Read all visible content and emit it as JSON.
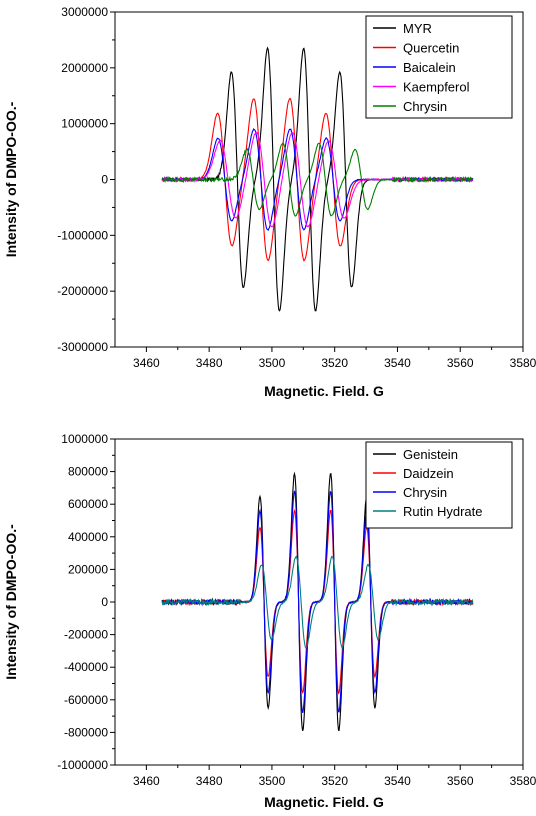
{
  "chart_data": [
    {
      "type": "line",
      "xlabel": "Magnetic. Field. G",
      "ylabel": "Intensity of DMPO-OO.-",
      "xlim": [
        3450,
        3580
      ],
      "ylim": [
        -3000000,
        3000000
      ],
      "xticks": [
        3460,
        3480,
        3500,
        3520,
        3540,
        3560,
        3580
      ],
      "yticks": [
        -3000000,
        -2000000,
        -1000000,
        0,
        1000000,
        2000000,
        3000000
      ],
      "legend_position": "top-right",
      "series": [
        {
          "name": "MYR",
          "color": "#000000",
          "amp": 2350000,
          "onset": 3484,
          "width": 1.9
        },
        {
          "name": "Quercetin",
          "color": "#ff0000",
          "amp": 1450000,
          "onset": 3474,
          "width": 2.3
        },
        {
          "name": "Baicalein",
          "color": "#0000ff",
          "amp": 900000,
          "onset": 3474,
          "width": 2.2
        },
        {
          "name": "Kaempferol",
          "color": "#ff00ff",
          "amp": 850000,
          "onset": 3478,
          "width": 2.5
        },
        {
          "name": "Chrysin",
          "color": "#008000",
          "amp": 650000,
          "onset": 3493,
          "width": 2.0
        }
      ]
    },
    {
      "type": "line",
      "xlabel": "Magnetic. Field. G",
      "ylabel": "Intensity of DMPO-OO.-",
      "xlim": [
        3450,
        3580
      ],
      "ylim": [
        -1000000,
        1000000
      ],
      "xticks": [
        3460,
        3480,
        3500,
        3520,
        3540,
        3560,
        3580
      ],
      "yticks": [
        -1000000,
        -800000,
        -600000,
        -400000,
        -200000,
        0,
        200000,
        400000,
        600000,
        800000,
        1000000
      ],
      "legend_position": "top-right",
      "series": [
        {
          "name": "Genistein",
          "color": "#000000",
          "amp": 790000,
          "onset": 3490,
          "width": 1.3
        },
        {
          "name": "Daidzein",
          "color": "#ff0000",
          "amp": 560000,
          "onset": 3490,
          "width": 1.3
        },
        {
          "name": "Chrysin",
          "color": "#0000ff",
          "amp": 680000,
          "onset": 3490,
          "width": 1.3
        },
        {
          "name": "Rutin Hydrate",
          "color": "#008080",
          "amp": 280000,
          "onset": 3490,
          "width": 1.6
        }
      ]
    }
  ]
}
